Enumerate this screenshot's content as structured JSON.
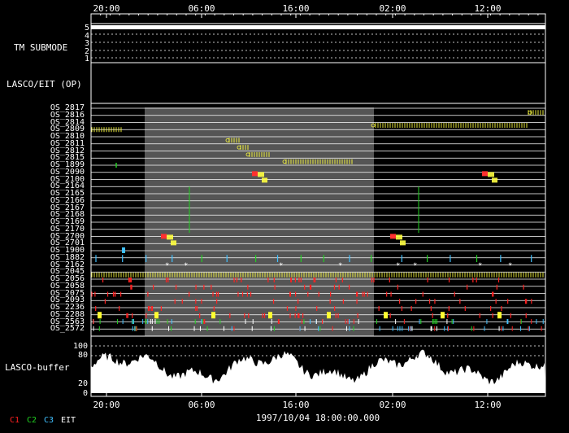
{
  "time_axis": {
    "top_labels": [
      "20:00",
      "06:00",
      "16:00",
      "02:00",
      "12:00"
    ],
    "bottom_labels": [
      "20:00",
      "06:00",
      "16:00",
      "02:00",
      "12:00"
    ],
    "date_label": "1997/10/04 18:00:00.000"
  },
  "panels": {
    "tm_submode": {
      "label": "TM SUBMODE",
      "levels": [
        "5",
        "4",
        "3",
        "2",
        "1"
      ]
    },
    "lasco_eit": {
      "label": "LASCO/EIT (OP)"
    },
    "os_list": {
      "labels": [
        "OS_2817",
        "OS_2816",
        "OS_2814",
        "OS_2809",
        "OS_2810",
        "OS_2811",
        "OS_2812",
        "OS_2815",
        "OS_1899",
        "OS_2090",
        "OS_2100",
        "OS_2164",
        "OS_2165",
        "OS_2166",
        "OS_2167",
        "OS_2168",
        "OS_2169",
        "OS_2170",
        "OS_2700",
        "OS_2701",
        "OS_1900",
        "OS_1882",
        "OS_2162",
        "OS_2045",
        "OS_2056",
        "OS_2058",
        "OS_2075",
        "OS_2093",
        "OS_2236",
        "OS_2288",
        "OS_2563",
        "OS_2572"
      ]
    },
    "lasco_buffer": {
      "label": "LASCO-buffer",
      "y_ticks": [
        "100",
        "80",
        "20",
        "0"
      ]
    }
  },
  "legend": [
    {
      "label": "C1",
      "color": "#ff2020"
    },
    {
      "label": "C2",
      "color": "#20d020"
    },
    {
      "label": "C3",
      "color": "#40c0ff"
    },
    {
      "label": "EIT",
      "color": "#ffffff"
    }
  ]
}
